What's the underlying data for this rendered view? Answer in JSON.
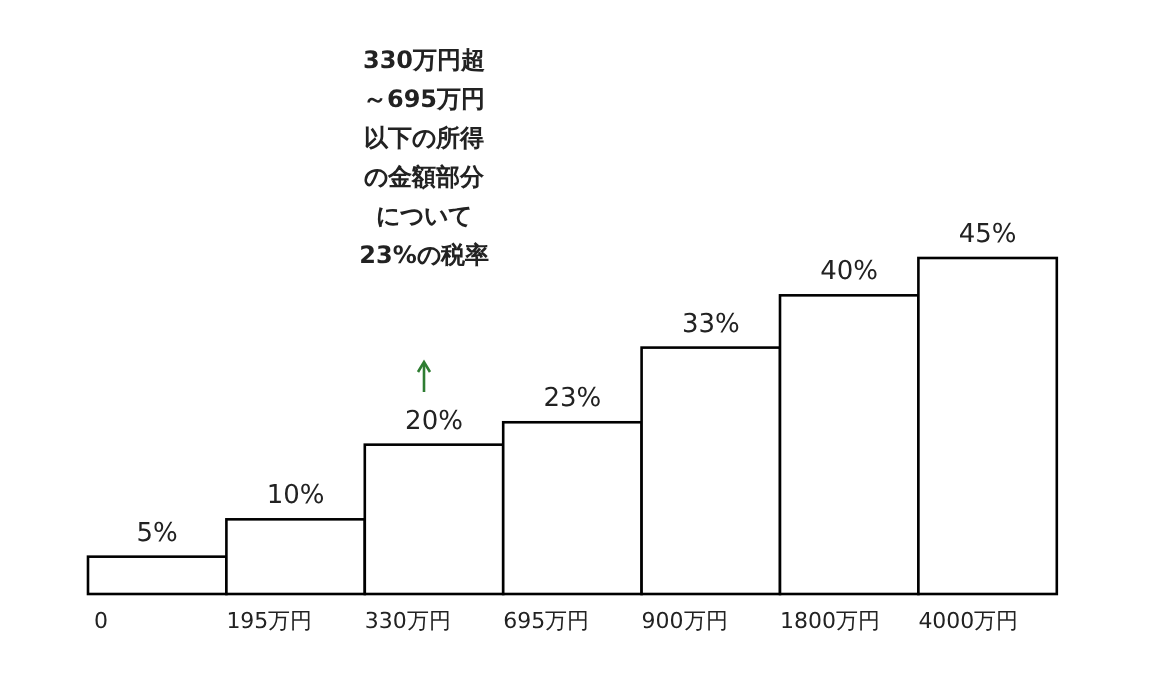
{
  "chart_data": {
    "type": "bar",
    "categories": [
      "0",
      "195万円",
      "330万円",
      "695万円",
      "900万円",
      "1800万円",
      "4000万円"
    ],
    "values": [
      5,
      10,
      20,
      23,
      33,
      40,
      45
    ],
    "value_labels": [
      "5%",
      "10%",
      "20%",
      "23%",
      "33%",
      "40%",
      "45%"
    ],
    "color": "#ffffff",
    "annotations": [
      "330万円超",
      "～695万円",
      "以下の所得",
      "の金額部分",
      "について",
      "23%の税率"
    ]
  }
}
